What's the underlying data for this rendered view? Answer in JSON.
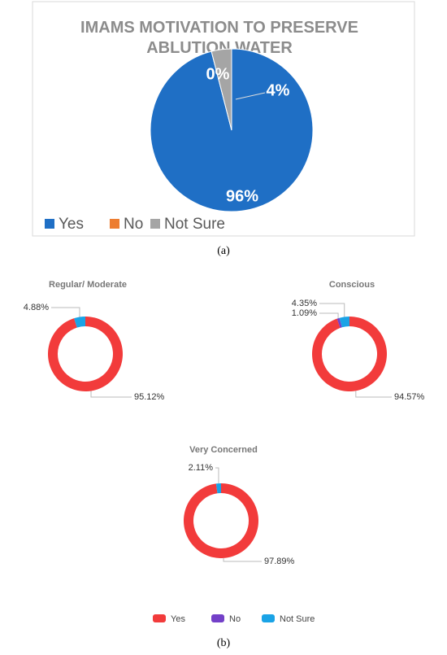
{
  "chart_data": [
    {
      "type": "pie",
      "title": "IMAMS MOTIVATION TO PRESERVE ABLUTION WATER",
      "categories": [
        "Yes",
        "No",
        "Not Sure"
      ],
      "values": [
        96,
        0,
        4
      ],
      "value_labels": [
        "96%",
        "0%",
        "4%"
      ],
      "colors": [
        "#1f6fc5",
        "#ed7d31",
        "#a5a5a5"
      ],
      "legend": "bottom",
      "caption": "(a)"
    },
    {
      "type": "donut",
      "categories": [
        "Yes",
        "No",
        "Not Sure"
      ],
      "colors": [
        "#f23b3b",
        "#7340c8",
        "#1aa3e6"
      ],
      "legend": "bottom",
      "caption": "(b)",
      "charts": [
        {
          "title": "Regular/ Moderate",
          "values": [
            95.12,
            0,
            4.88
          ],
          "value_labels": [
            "95.12%",
            null,
            "4.88%"
          ]
        },
        {
          "title": "Conscious",
          "values": [
            94.57,
            1.09,
            4.35
          ],
          "value_labels": [
            "94.57%",
            "1.09%",
            "4.35%"
          ]
        },
        {
          "title": "Very Concerned",
          "values": [
            97.89,
            0,
            2.11
          ],
          "value_labels": [
            "97.89%",
            null,
            "2.11%"
          ]
        }
      ]
    }
  ]
}
